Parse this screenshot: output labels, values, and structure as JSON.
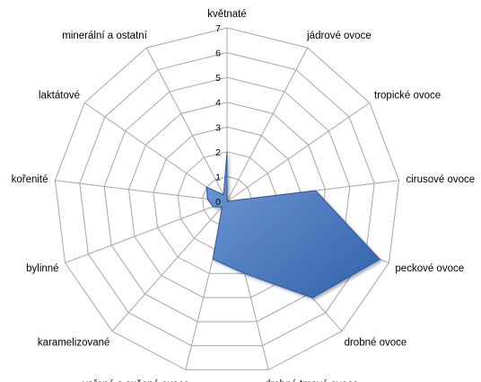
{
  "chart_data": {
    "type": "radar",
    "categories": [
      "květnaté",
      "jádrové ovoce",
      "tropické ovoce",
      "cirusové ovoce",
      "peckové ovoce",
      "drobné ovoce",
      "drobné tmavé ovoce",
      "vařené a sušené ovoce",
      "karamelizované",
      "bylinné",
      "kořenité",
      "laktátové",
      "minerální a ostatní"
    ],
    "values": [
      2,
      0,
      0,
      3.6,
      6.6,
      5.2,
      3.0,
      2.4,
      0.3,
      0.6,
      0.8,
      1.0,
      0.3
    ],
    "rlim": [
      0,
      7
    ],
    "ticks": [
      0,
      1,
      2,
      3,
      4,
      5,
      6,
      7
    ],
    "grid": true,
    "legend": "none",
    "colors": {
      "fill": "#4a7cc8",
      "stroke": "#2b5597",
      "grid": "#a6a6a6"
    }
  }
}
